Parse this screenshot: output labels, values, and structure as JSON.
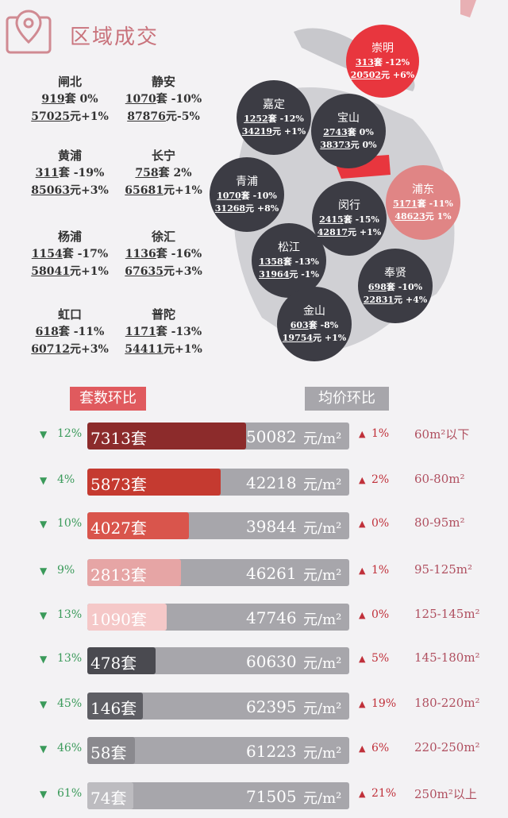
{
  "title": "区域成交",
  "districts": [
    {
      "name": "闸北",
      "count": "919",
      "count_unit": "套",
      "count_change": "0%",
      "price": "57025",
      "price_unit": "元",
      "price_change": "+1%"
    },
    {
      "name": "静安",
      "count": "1070",
      "count_unit": "套",
      "count_change": "-10%",
      "price": "87876",
      "price_unit": "元",
      "price_change": "-5%"
    },
    {
      "name": "黄浦",
      "count": "311",
      "count_unit": "套",
      "count_change": "-19%",
      "price": "85063",
      "price_unit": "元",
      "price_change": "+3%"
    },
    {
      "name": "长宁",
      "count": "758",
      "count_unit": "套",
      "count_change": "2%",
      "price": "65681",
      "price_unit": "元",
      "price_change": "+1%"
    },
    {
      "name": "杨浦",
      "count": "1154",
      "count_unit": "套",
      "count_change": "-17%",
      "price": "58041",
      "price_unit": "元",
      "price_change": "+1%"
    },
    {
      "name": "徐汇",
      "count": "1136",
      "count_unit": "套",
      "count_change": "-16%",
      "price": "67635",
      "price_unit": "元",
      "price_change": "+3%"
    },
    {
      "name": "虹口",
      "count": "618",
      "count_unit": "套",
      "count_change": "-11%",
      "price": "60712",
      "price_unit": "元",
      "price_change": "+3%"
    },
    {
      "name": "普陀",
      "count": "1171",
      "count_unit": "套",
      "count_change": "-13%",
      "price": "54411",
      "price_unit": "元",
      "price_change": "+1%"
    }
  ],
  "map_districts": [
    {
      "name": "崇明",
      "count": "313",
      "count_unit": "套",
      "count_change": "-12%",
      "price": "20502",
      "price_unit": "元",
      "price_change": "+6%",
      "color": "#e8363e"
    },
    {
      "name": "嘉定",
      "count": "1252",
      "count_unit": "套",
      "count_change": "-12%",
      "price": "34219",
      "price_unit": "元",
      "price_change": "+1%",
      "color": "#3c3c44"
    },
    {
      "name": "宝山",
      "count": "2743",
      "count_unit": "套",
      "count_change": "0%",
      "price": "38373",
      "price_unit": "元",
      "price_change": "0%",
      "color": "#3c3c44"
    },
    {
      "name": "青浦",
      "count": "1070",
      "count_unit": "套",
      "count_change": "-10%",
      "price": "31268",
      "price_unit": "元",
      "price_change": "+8%",
      "color": "#3c3c44"
    },
    {
      "name": "浦东",
      "count": "5171",
      "count_unit": "套",
      "count_change": "-11%",
      "price": "48623",
      "price_unit": "元",
      "price_change": "1%",
      "color": "#e08585"
    },
    {
      "name": "闵行",
      "count": "2415",
      "count_unit": "套",
      "count_change": "-15%",
      "price": "42817",
      "price_unit": "元",
      "price_change": "+1%",
      "color": "#3c3c44"
    },
    {
      "name": "松江",
      "count": "1358",
      "count_unit": "套",
      "count_change": "-13%",
      "price": "31964",
      "price_unit": "元",
      "price_change": "-1%",
      "color": "#3c3c44"
    },
    {
      "name": "奉贤",
      "count": "698",
      "count_unit": "套",
      "count_change": "-10%",
      "price": "22831",
      "price_unit": "元",
      "price_change": "+4%",
      "color": "#3c3c44"
    },
    {
      "name": "金山",
      "count": "603",
      "count_unit": "套",
      "count_change": "-8%",
      "price": "19754",
      "price_unit": "元",
      "price_change": "+1%",
      "color": "#3c3c44"
    }
  ],
  "legend": {
    "count_label": "套数环比",
    "price_label": "均价环比",
    "count_color": "#e05a5e",
    "price_color": "#a7a6ab"
  },
  "size_rows": [
    {
      "count_change": "12%",
      "count": "7313套",
      "price": "50082",
      "unit": "元/m²",
      "price_change": "1%",
      "size": "60m²以下",
      "color": "#8c2b2b"
    },
    {
      "count_change": "4%",
      "count": "5873套",
      "price": "42218",
      "unit": "元/m²",
      "price_change": "2%",
      "size": "60-80m²",
      "color": "#c53a30"
    },
    {
      "count_change": "10%",
      "count": "4027套",
      "price": "39844",
      "unit": "元/m²",
      "price_change": "0%",
      "size": "80-95m²",
      "color": "#d9554c"
    },
    {
      "count_change": "9%",
      "count": "2813套",
      "price": "46261",
      "unit": "元/m²",
      "price_change": "1%",
      "size": "95-125m²",
      "color": "#e6a5a5"
    },
    {
      "count_change": "13%",
      "count": "1090套",
      "price": "47746",
      "unit": "元/m²",
      "price_change": "0%",
      "size": "125-145m²",
      "color": "#f5c8c8"
    },
    {
      "count_change": "13%",
      "count": "478套",
      "price": "60630",
      "unit": "元/m²",
      "price_change": "5%",
      "size": "145-180m²",
      "color": "#4a4a50"
    },
    {
      "count_change": "45%",
      "count": "146套",
      "price": "62395",
      "unit": "元/m²",
      "price_change": "19%",
      "size": "180-220m²",
      "color": "#5e5e64"
    },
    {
      "count_change": "46%",
      "count": "58套",
      "price": "61223",
      "unit": "元/m²",
      "price_change": "6%",
      "size": "220-250m²",
      "color": "#8a898e"
    },
    {
      "count_change": "61%",
      "count": "74套",
      "price": "71505",
      "unit": "元/m²",
      "price_change": "21%",
      "size": "250m²以上",
      "color": "#bdbcc0"
    }
  ]
}
